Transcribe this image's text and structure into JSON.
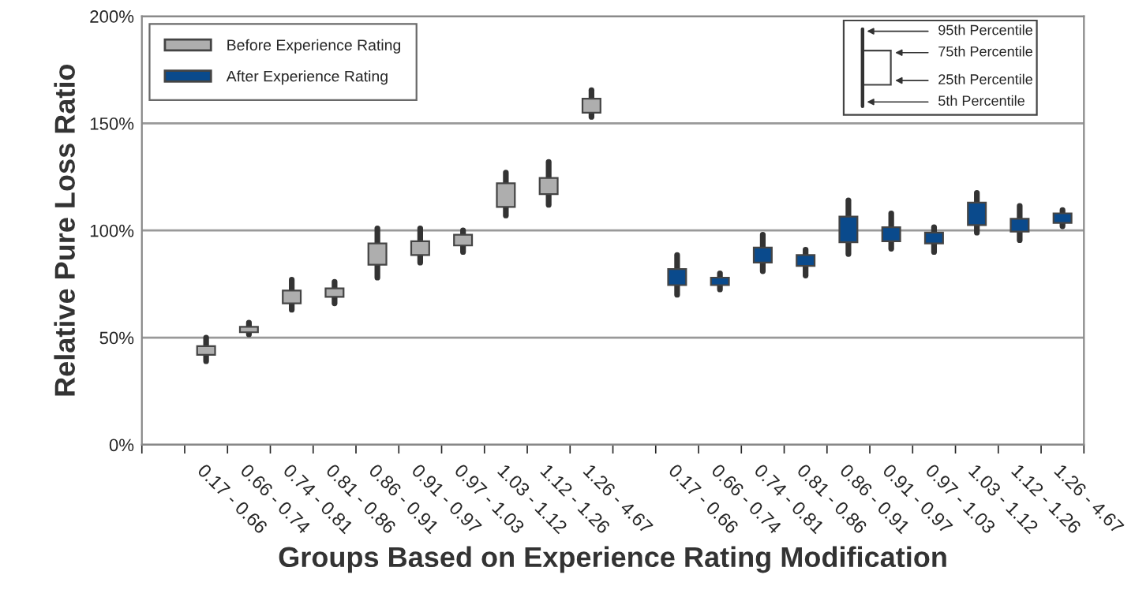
{
  "chart_data": {
    "type": "box",
    "xlabel": "Groups Based on Experience Rating Modification",
    "ylabel": "Relative Pure Loss Ratio",
    "categories": [
      null,
      "0.17 - 0.66",
      "0.66 - 0.74",
      "0.74 - 0.81",
      "0.81 - 0.86",
      "0.86 - 0.91",
      "0.91 - 0.97",
      "0.97 - 1.03",
      "1.03 - 1.12",
      "1.12 - 1.26",
      "1.26 - 4.67",
      null,
      "0.17 - 0.66",
      "0.66 - 0.74",
      "0.74 - 0.81",
      "0.81 - 0.86",
      "0.86 - 0.91",
      "0.91 - 0.97",
      "0.97 - 1.03",
      "1.03 - 1.12",
      "1.12 - 1.26",
      "1.26 - 4.67"
    ],
    "series": [
      {
        "name": "Before Experience Rating",
        "color": "#aeaeae",
        "boxes": [
          null,
          {
            "low": 39,
            "q1": 42,
            "q3": 46,
            "high": 50
          },
          {
            "low": 51.5,
            "q1": 52.5,
            "q3": 55,
            "high": 57
          },
          {
            "low": 63,
            "q1": 66,
            "q3": 72,
            "high": 77
          },
          {
            "low": 66,
            "q1": 69,
            "q3": 73,
            "high": 76
          },
          {
            "low": 78,
            "q1": 84,
            "q3": 94,
            "high": 101
          },
          {
            "low": 85,
            "q1": 88.5,
            "q3": 95,
            "high": 101
          },
          {
            "low": 90,
            "q1": 93,
            "q3": 98,
            "high": 100
          },
          {
            "low": 107,
            "q1": 111,
            "q3": 122,
            "high": 127
          },
          {
            "low": 112,
            "q1": 117,
            "q3": 124.5,
            "high": 132
          },
          {
            "low": 153,
            "q1": 155,
            "q3": 161.5,
            "high": 165.5
          },
          null,
          null,
          null,
          null,
          null,
          null,
          null,
          null,
          null,
          null,
          null
        ]
      },
      {
        "name": "After Experience Rating",
        "color": "#0a4a8c",
        "boxes": [
          null,
          null,
          null,
          null,
          null,
          null,
          null,
          null,
          null,
          null,
          null,
          null,
          {
            "low": 70,
            "q1": 74.5,
            "q3": 82,
            "high": 88.5
          },
          {
            "low": 72.5,
            "q1": 74.5,
            "q3": 78,
            "high": 80
          },
          {
            "low": 81,
            "q1": 85,
            "q3": 92,
            "high": 98
          },
          {
            "low": 79,
            "q1": 83.5,
            "q3": 88.5,
            "high": 91
          },
          {
            "low": 89,
            "q1": 94.5,
            "q3": 106.5,
            "high": 114
          },
          {
            "low": 91.5,
            "q1": 95,
            "q3": 101.5,
            "high": 108
          },
          {
            "low": 90,
            "q1": 94,
            "q3": 99,
            "high": 101.5
          },
          {
            "low": 99,
            "q1": 102.5,
            "q3": 113,
            "high": 117.5
          },
          {
            "low": 95.5,
            "q1": 99.5,
            "q3": 105.5,
            "high": 111.5
          },
          {
            "low": 102,
            "q1": 103.5,
            "q3": 108,
            "high": 109.5
          }
        ]
      }
    ],
    "ylim": [
      0,
      200
    ],
    "yticks": [
      {
        "value": 0,
        "label": "0%"
      },
      {
        "value": 50,
        "label": "50%"
      },
      {
        "value": 100,
        "label": "100%"
      },
      {
        "value": 150,
        "label": "150%"
      },
      {
        "value": 200,
        "label": "200%"
      }
    ],
    "grid": "y",
    "legend": "top left",
    "annotations": [
      "95th Percentile",
      "75th Percentile",
      "25th Percentile",
      "5th Percentile"
    ]
  }
}
